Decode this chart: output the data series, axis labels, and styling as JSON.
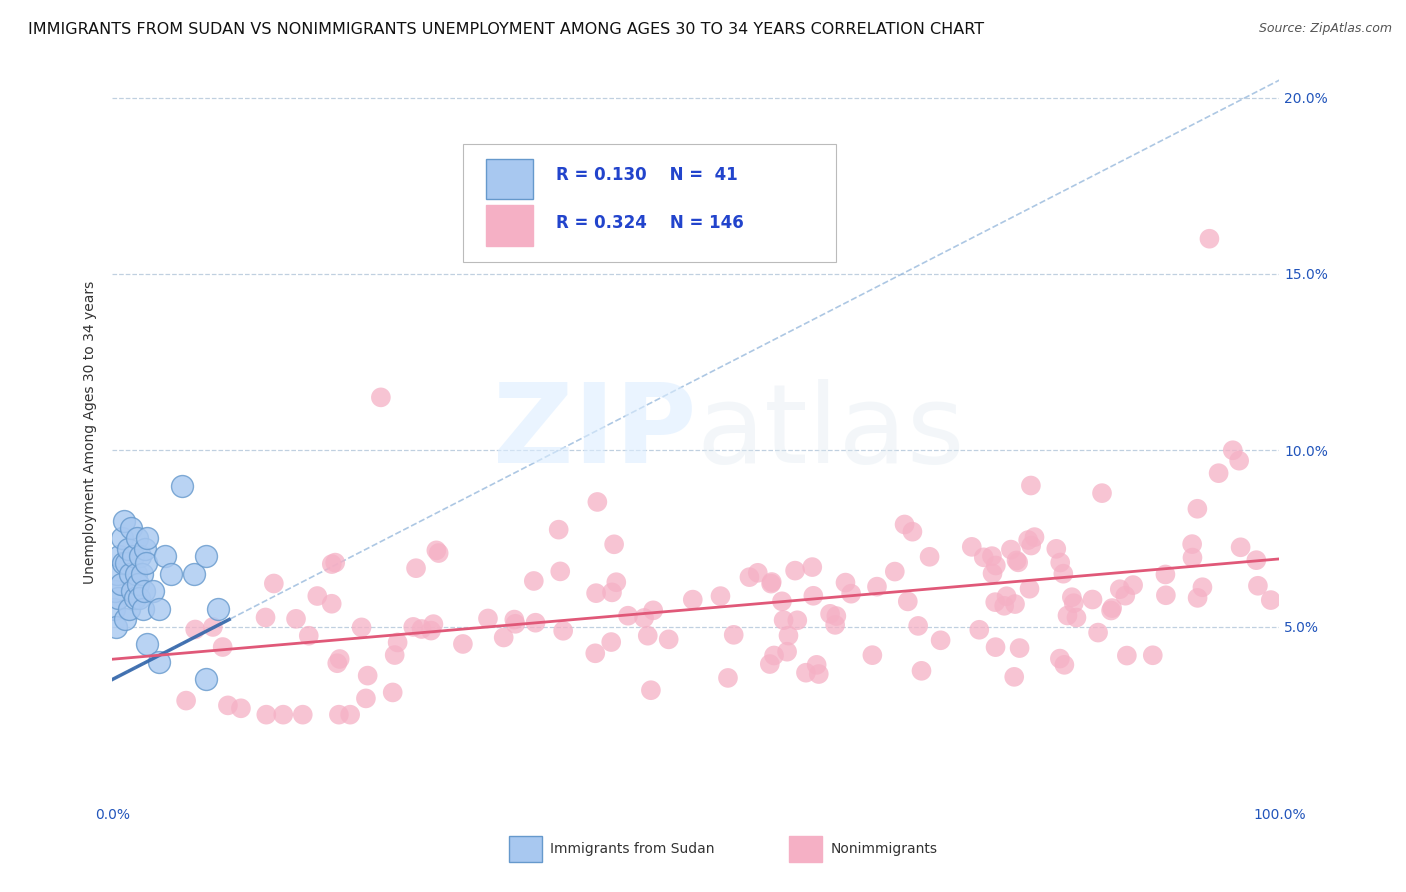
{
  "title": "IMMIGRANTS FROM SUDAN VS NONIMMIGRANTS UNEMPLOYMENT AMONG AGES 30 TO 34 YEARS CORRELATION CHART",
  "source": "Source: ZipAtlas.com",
  "ylabel": "Unemployment Among Ages 30 to 34 years",
  "xlim": [
    0,
    100
  ],
  "ylim": [
    0,
    21
  ],
  "ytick_vals": [
    5,
    10,
    15,
    20
  ],
  "ytick_labels": [
    "5.0%",
    "10.0%",
    "15.0%",
    "20.0%"
  ],
  "xtick_vals": [
    0,
    100
  ],
  "xtick_labels": [
    "0.0%",
    "100.0%"
  ],
  "series1_label": "Immigrants from Sudan",
  "series1_R": "0.130",
  "series1_N": "41",
  "series1_color": "#a8c8f0",
  "series1_edge_color": "#6699cc",
  "series1_trend_color": "#3366aa",
  "series2_label": "Nonimmigrants",
  "series2_R": "0.324",
  "series2_N": "146",
  "series2_color": "#f5b0c5",
  "series2_edge_color": "#f5b0c5",
  "series2_trend_color": "#e05878",
  "background_color": "#ffffff",
  "grid_color": "#c0d0e0",
  "title_fontsize": 11.5,
  "axis_label_fontsize": 10,
  "tick_fontsize": 10,
  "legend_fontsize": 12
}
